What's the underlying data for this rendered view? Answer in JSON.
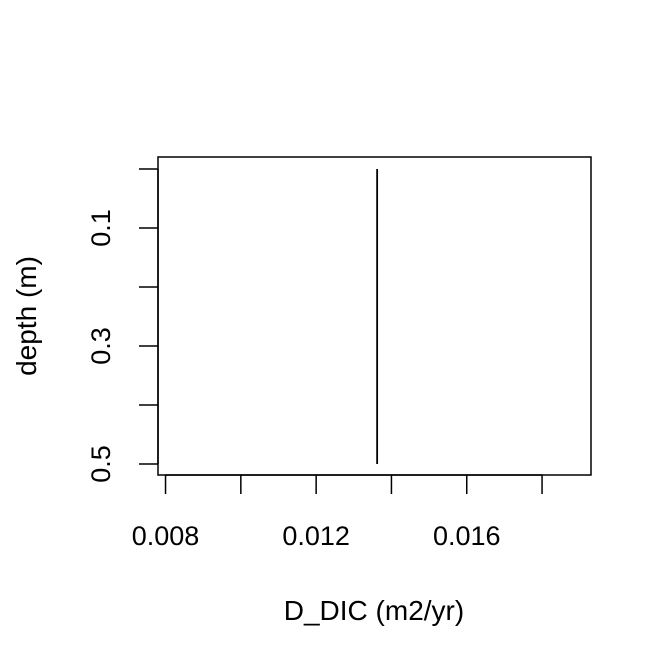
{
  "chart_data": {
    "type": "line",
    "title": "",
    "xlabel": "D_DIC (m2/yr)",
    "ylabel": "depth (m)",
    "xlim": [
      0.0078,
      0.0193
    ],
    "ylim": [
      0.5,
      0.0
    ],
    "x_ticks": [
      0.008,
      0.01,
      0.012,
      0.014,
      0.016,
      0.018
    ],
    "x_tick_labels": [
      {
        "value": 0.008,
        "label": "0.008"
      },
      {
        "value": 0.012,
        "label": "0.012"
      },
      {
        "value": 0.016,
        "label": "0.016"
      }
    ],
    "y_ticks": [
      0.0,
      0.1,
      0.2,
      0.3,
      0.4,
      0.5
    ],
    "y_tick_labels": [
      {
        "value": 0.1,
        "label": "0.1"
      },
      {
        "value": 0.3,
        "label": "0.3"
      },
      {
        "value": 0.5,
        "label": "0.5"
      }
    ],
    "series": [
      {
        "name": "D_DIC",
        "x": [
          0.01362,
          0.01362
        ],
        "y": [
          0.0,
          0.5
        ],
        "color": "#000000"
      }
    ],
    "grid": false,
    "legend": "none"
  }
}
